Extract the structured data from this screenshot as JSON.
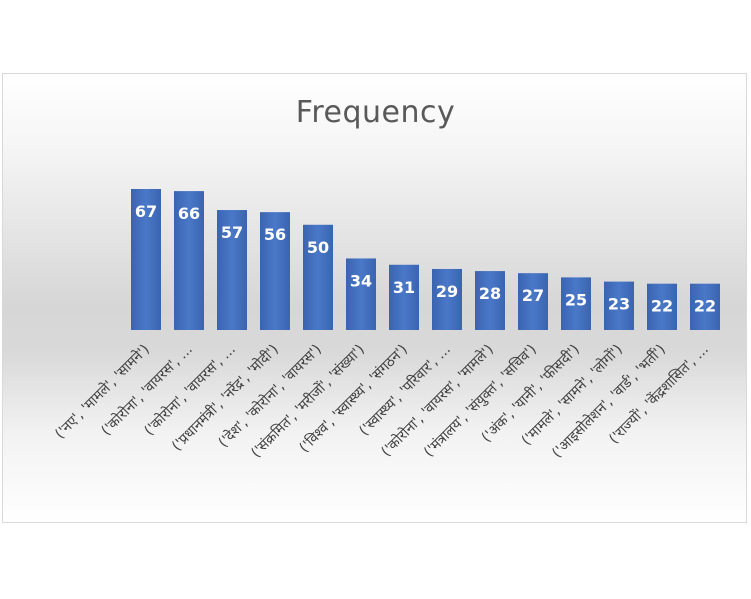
{
  "chart_data": {
    "type": "bar",
    "title": "Frequency",
    "xlabel": "",
    "ylabel": "",
    "categories": [
      "('नए', 'मामले', 'सामने')",
      "('कोरोना', 'वायरस', ...",
      "('कोरोना', 'वायरस', ...",
      "('प्रधानमंत्री', 'नरेंद्र', 'मोदी')",
      "('देश', 'कोरोना', 'वायरस')",
      "('संक्रमित', 'मरीजों', 'संख्या')",
      "('विश्व', 'स्वास्थ्य', 'संगठन')",
      "('स्वास्थ्य', 'परिवार', ...",
      "('कोरोना', 'वायरस', 'मामले')",
      "('मंत्रालय', 'संयुक्त', 'सचिव')",
      "('अंक', 'यानी', 'फीसदी')",
      "('मामले', 'सामने', 'लोगों')",
      "('आइसोलेशन', 'वार्ड', 'भर्ती')",
      "('राज्यों', 'केंद्रशासित', ..."
    ],
    "values": [
      67,
      66,
      57,
      56,
      50,
      34,
      31,
      29,
      28,
      27,
      25,
      23,
      22,
      22
    ],
    "ylim": [
      0,
      67
    ],
    "grid": false,
    "legend": "none",
    "bar_color": "#4472c4",
    "label_color": "#ffffff"
  }
}
